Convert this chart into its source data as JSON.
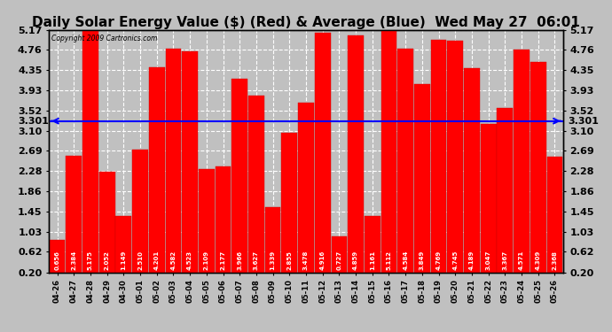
{
  "title": "Daily Solar Energy Value ($) (Red) & Average (Blue)  Wed May 27  06:01",
  "copyright": "Copyright 2009 Cartronics.com",
  "categories": [
    "04-26",
    "04-27",
    "04-28",
    "04-29",
    "04-30",
    "05-01",
    "05-02",
    "05-03",
    "05-04",
    "05-05",
    "05-06",
    "05-07",
    "05-08",
    "05-09",
    "05-10",
    "05-11",
    "05-12",
    "05-13",
    "05-14",
    "05-15",
    "05-16",
    "05-17",
    "05-18",
    "05-19",
    "05-20",
    "05-21",
    "05-22",
    "05-23",
    "05-24",
    "05-25",
    "05-26"
  ],
  "values": [
    0.656,
    2.384,
    5.175,
    2.052,
    1.149,
    2.51,
    4.201,
    4.582,
    4.523,
    2.109,
    2.177,
    3.966,
    3.627,
    1.339,
    2.855,
    3.478,
    4.916,
    0.727,
    4.859,
    1.161,
    5.112,
    4.584,
    3.849,
    4.769,
    4.745,
    4.189,
    3.047,
    3.367,
    4.571,
    4.309,
    2.368
  ],
  "average": 3.301,
  "bar_color": "#ff0000",
  "avg_line_color": "#0000ff",
  "background_color": "#c0c0c0",
  "plot_bg_color": "#c0c0c0",
  "grid_color": "#ffffff",
  "ylim": [
    0.2,
    5.17
  ],
  "yticks": [
    0.2,
    0.62,
    1.03,
    1.45,
    1.86,
    2.28,
    2.69,
    3.1,
    3.52,
    3.93,
    4.35,
    4.76,
    5.17
  ],
  "title_fontsize": 11,
  "avg_label": "3.301",
  "ylabel_fontsize": 8,
  "bar_label_fontsize": 5.0,
  "xlabel_fontsize": 6.0
}
